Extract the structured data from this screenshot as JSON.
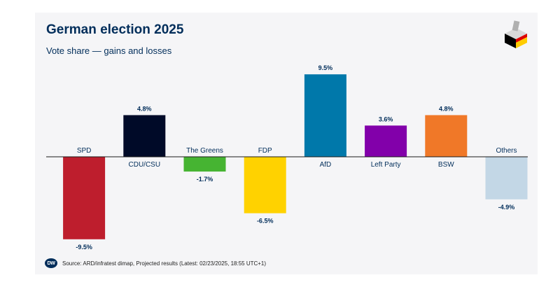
{
  "header": {
    "title": "German election 2025",
    "subtitle": "Vote share — gains and losses"
  },
  "footer": {
    "logo_text": "DW",
    "source": "Source: ARD/infratest dimap, Projected results (Latest: 02/23/2025, 18:55 UTC+1)"
  },
  "icons": {
    "logo": "ballot-box-german-flag-icon",
    "footer_logo": "dw-logo-icon"
  },
  "chart_data": {
    "type": "bar",
    "categories": [
      "SPD",
      "CDU/CSU",
      "The Greens",
      "FDP",
      "AfD",
      "Left Party",
      "BSW",
      "Others"
    ],
    "values": [
      -9.5,
      4.8,
      -1.7,
      -6.5,
      9.5,
      3.6,
      4.8,
      -4.9
    ],
    "value_labels": [
      "-9.5%",
      "4.8%",
      "-1.7%",
      "-6.5%",
      "9.5%",
      "3.6%",
      "4.8%",
      "-4.9%"
    ],
    "colors": [
      "#be1e2d",
      "#000a28",
      "#46b432",
      "#ffd200",
      "#0078aa",
      "#8200aa",
      "#f07828",
      "#c3d7e6"
    ],
    "ylim": [
      -9.5,
      9.5
    ],
    "grid": false,
    "legend": "none",
    "xlabel": "",
    "ylabel": "",
    "label_color": "#002d5a"
  }
}
